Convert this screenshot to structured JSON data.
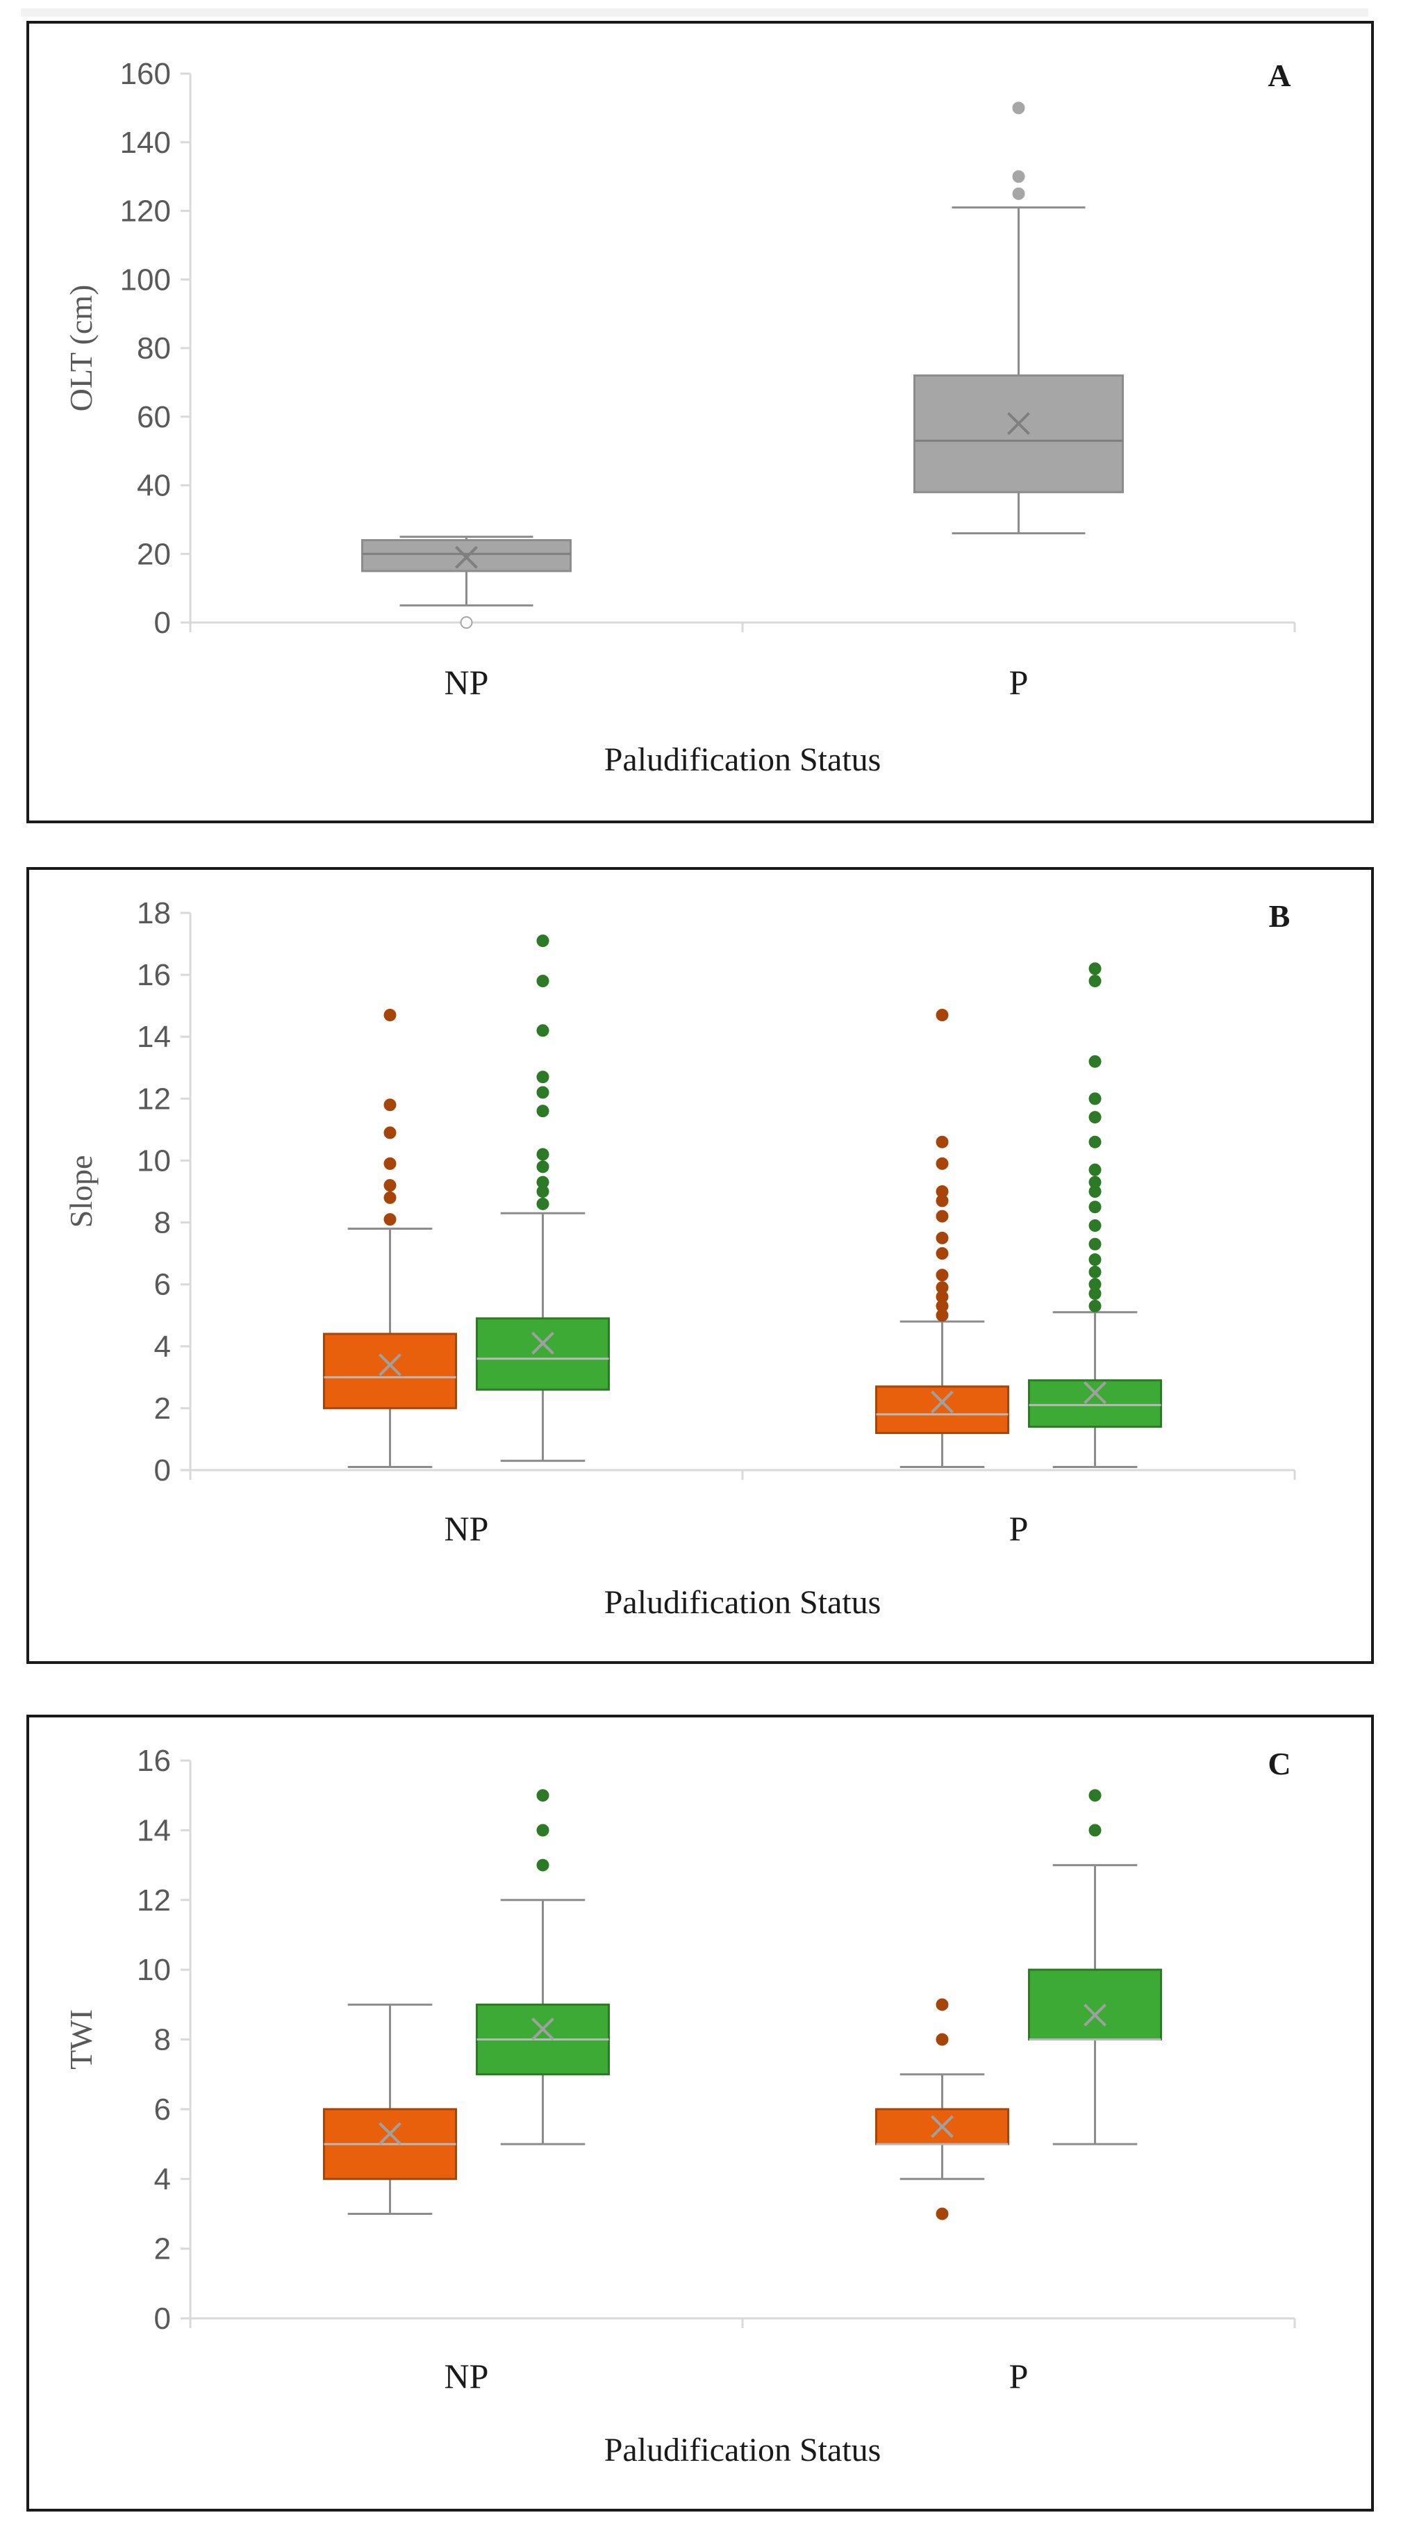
{
  "chart_data": [
    {
      "type": "boxplot",
      "panel": "A",
      "xlabel": "Paludification Status",
      "ylabel": "OLT (cm)",
      "ylim": [
        0,
        160
      ],
      "yticks": [
        0,
        20,
        40,
        60,
        80,
        100,
        120,
        140,
        160
      ],
      "categories": [
        "NP",
        "P"
      ],
      "series": [
        {
          "name": "OLT",
          "color": "#a6a6a6",
          "boxes": [
            {
              "category": "NP",
              "min": 5,
              "q1": 15,
              "median": 20,
              "q3": 24,
              "max": 25,
              "mean": 19,
              "outliers": [
                0
              ]
            },
            {
              "category": "P",
              "min": 26,
              "q1": 38,
              "median": 53,
              "q3": 72,
              "max": 121,
              "mean": 58,
              "outliers": [
                125,
                130,
                150
              ]
            }
          ]
        }
      ]
    },
    {
      "type": "boxplot",
      "panel": "B",
      "xlabel": "Paludification Status",
      "ylabel": "Slope",
      "ylim": [
        0,
        18
      ],
      "yticks": [
        0,
        2,
        4,
        6,
        8,
        10,
        12,
        14,
        16,
        18
      ],
      "categories": [
        "NP",
        "P"
      ],
      "series": [
        {
          "name": "orange",
          "color": "#e8600c",
          "boxes": [
            {
              "category": "NP",
              "min": 0.1,
              "q1": 2.0,
              "median": 3.0,
              "q3": 4.4,
              "max": 7.8,
              "mean": 3.4,
              "outliers": [
                8.1,
                8.8,
                9.2,
                9.9,
                10.9,
                11.8,
                14.7
              ]
            },
            {
              "category": "P",
              "min": 0.1,
              "q1": 1.2,
              "median": 1.8,
              "q3": 2.7,
              "max": 4.8,
              "mean": 2.2,
              "outliers": [
                5.0,
                5.3,
                5.6,
                5.9,
                6.3,
                7.0,
                7.5,
                8.2,
                8.7,
                9.0,
                9.9,
                10.6,
                14.7
              ]
            }
          ]
        },
        {
          "name": "green",
          "color": "#3daa35",
          "boxes": [
            {
              "category": "NP",
              "min": 0.3,
              "q1": 2.6,
              "median": 3.6,
              "q3": 4.9,
              "max": 8.3,
              "mean": 4.1,
              "outliers": [
                8.6,
                9.0,
                9.3,
                9.8,
                10.2,
                11.6,
                12.2,
                12.7,
                14.2,
                15.8,
                17.1
              ]
            },
            {
              "category": "P",
              "min": 0.1,
              "q1": 1.4,
              "median": 2.1,
              "q3": 2.9,
              "max": 5.1,
              "mean": 2.5,
              "outliers": [
                5.3,
                5.7,
                6.0,
                6.4,
                6.8,
                7.3,
                7.9,
                8.5,
                9.0,
                9.3,
                9.7,
                10.6,
                11.4,
                12.0,
                13.2,
                15.8,
                16.2
              ]
            }
          ]
        }
      ]
    },
    {
      "type": "boxplot",
      "panel": "C",
      "xlabel": "Paludification Status",
      "ylabel": "TWI",
      "ylim": [
        0,
        16
      ],
      "yticks": [
        0,
        2,
        4,
        6,
        8,
        10,
        12,
        14,
        16
      ],
      "categories": [
        "NP",
        "P"
      ],
      "series": [
        {
          "name": "orange",
          "color": "#e8600c",
          "boxes": [
            {
              "category": "NP",
              "min": 3,
              "q1": 4,
              "median": 5,
              "q3": 6,
              "max": 9,
              "mean": 5.3,
              "outliers": []
            },
            {
              "category": "P",
              "min": 4,
              "q1": 5,
              "median": 5,
              "q3": 6,
              "max": 7,
              "mean": 5.5,
              "outliers": [
                3,
                8,
                9
              ]
            }
          ]
        },
        {
          "name": "green",
          "color": "#3daa35",
          "boxes": [
            {
              "category": "NP",
              "min": 5,
              "q1": 7,
              "median": 8,
              "q3": 9,
              "max": 12,
              "mean": 8.3,
              "outliers": [
                13,
                14,
                15
              ]
            },
            {
              "category": "P",
              "min": 5,
              "q1": 8,
              "median": 8,
              "q3": 10,
              "max": 13,
              "mean": 8.7,
              "outliers": [
                14,
                15
              ]
            }
          ]
        }
      ]
    }
  ]
}
